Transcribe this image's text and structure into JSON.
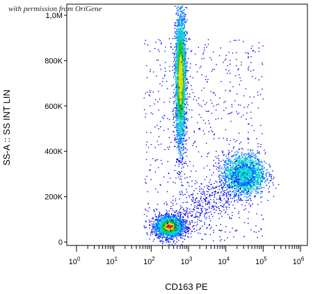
{
  "watermark": "with permission from OriGene",
  "chart_data": {
    "type": "scatter",
    "title": "",
    "xlabel": "CD163 PE",
    "ylabel": "SS-A :: SS INT LIN",
    "x_scale": "log",
    "xlim": [
      1,
      1000000
    ],
    "ylim": [
      0,
      1000000
    ],
    "x_ticks": [
      {
        "value": 1,
        "base": "10",
        "exp": "0"
      },
      {
        "value": 10,
        "base": "10",
        "exp": "1"
      },
      {
        "value": 100,
        "base": "10",
        "exp": "2"
      },
      {
        "value": 1000,
        "base": "10",
        "exp": "3"
      },
      {
        "value": 10000,
        "base": "10",
        "exp": "4"
      },
      {
        "value": 100000,
        "base": "10",
        "exp": "5"
      },
      {
        "value": 1000000,
        "base": "10",
        "exp": "6"
      }
    ],
    "y_ticks": [
      {
        "value": 0,
        "label": "0"
      },
      {
        "value": 200000,
        "label": "200K"
      },
      {
        "value": 400000,
        "label": "400K"
      },
      {
        "value": 600000,
        "label": "600K"
      },
      {
        "value": 800000,
        "label": "800K"
      },
      {
        "value": 1000000,
        "label": "1,0M"
      }
    ],
    "populations": [
      {
        "x_center": 300,
        "y_center": 70000,
        "x_spread_log": 0.18,
        "y_spread": 22000,
        "count": 2600,
        "color_peak": "#ff2200"
      },
      {
        "x_center": 600,
        "y_center": 720000,
        "x_spread_log": 0.07,
        "y_spread": 150000,
        "count": 3400,
        "color_peak": "#22aa22"
      },
      {
        "x_center": 30000,
        "y_center": 300000,
        "x_spread_log": 0.28,
        "y_spread": 45000,
        "count": 2000,
        "color_peak": "#3399ff"
      }
    ],
    "grid": false,
    "colors": {
      "sparse": "#0000ee",
      "low": "#0080ff",
      "mid": "#00d0d0",
      "high": "#20c020",
      "higher": "#e0e000",
      "peak": "#ff2000"
    }
  }
}
